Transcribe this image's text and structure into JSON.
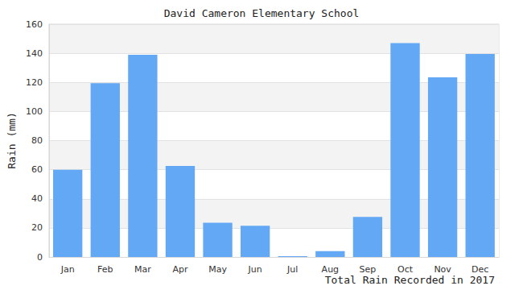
{
  "chart_data": {
    "type": "bar",
    "title": "David Cameron Elementary School",
    "y_label": "Rain (mm)",
    "annotation": "Total Rain Recorded in 2017",
    "categories": [
      "Jan",
      "Feb",
      "Mar",
      "Apr",
      "May",
      "Jun",
      "Jul",
      "Aug",
      "Sep",
      "Oct",
      "Nov",
      "Dec"
    ],
    "values": [
      60,
      119.5,
      139,
      62.5,
      23.5,
      21.5,
      0.5,
      4,
      27.5,
      147,
      123.5,
      139.5
    ],
    "color": "#62a8f4",
    "ylim": [
      0,
      160
    ],
    "yticks": [
      0,
      20,
      40,
      60,
      80,
      100,
      120,
      140,
      160
    ],
    "grid": true
  }
}
